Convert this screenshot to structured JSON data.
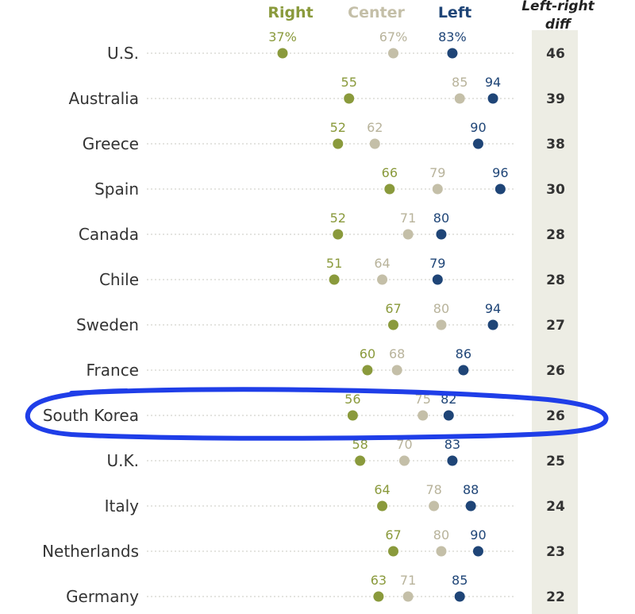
{
  "chart_data": {
    "type": "scatter",
    "legend": [
      {
        "label": "Right",
        "color": "#8a9a3c"
      },
      {
        "label": "Center",
        "color": "#c4bfa8"
      },
      {
        "label": "Left",
        "color": "#1f4577"
      }
    ],
    "diff_header": [
      "Left-right",
      "diff"
    ],
    "colors": {
      "right": "#8a9a3c",
      "center": "#c4bfa8",
      "left": "#1f4577",
      "right_text": "#8a9a3c",
      "center_text": "#b8b39b",
      "left_text": "#1f4577",
      "diff_column": "#ededE4",
      "highlight": "#1f3ee8"
    },
    "x_range": [
      20,
      100
    ],
    "highlight_country": "South Korea",
    "rows": [
      {
        "country": "U.S.",
        "right": 37,
        "center": 67,
        "left": 83,
        "diff": 46,
        "percent": true
      },
      {
        "country": "Australia",
        "right": 55,
        "center": 85,
        "left": 94,
        "diff": 39
      },
      {
        "country": "Greece",
        "right": 52,
        "center": 62,
        "left": 90,
        "diff": 38
      },
      {
        "country": "Spain",
        "right": 66,
        "center": 79,
        "left": 96,
        "diff": 30
      },
      {
        "country": "Canada",
        "right": 52,
        "center": 71,
        "left": 80,
        "diff": 28
      },
      {
        "country": "Chile",
        "right": 51,
        "center": 64,
        "left": 79,
        "diff": 28
      },
      {
        "country": "Sweden",
        "right": 67,
        "center": 80,
        "left": 94,
        "diff": 27
      },
      {
        "country": "France",
        "right": 60,
        "center": 68,
        "left": 86,
        "diff": 26
      },
      {
        "country": "South Korea",
        "right": 56,
        "center": 75,
        "left": 82,
        "diff": 26
      },
      {
        "country": "U.K.",
        "right": 58,
        "center": 70,
        "left": 83,
        "diff": 25
      },
      {
        "country": "Italy",
        "right": 64,
        "center": 78,
        "left": 88,
        "diff": 24
      },
      {
        "country": "Netherlands",
        "right": 67,
        "center": 80,
        "left": 90,
        "diff": 23
      },
      {
        "country": "Germany",
        "right": 63,
        "center": 71,
        "left": 85,
        "diff": 22
      }
    ]
  }
}
